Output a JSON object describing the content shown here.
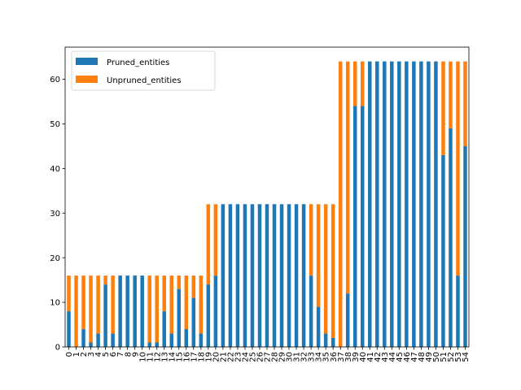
{
  "chart_data": {
    "type": "bar",
    "stacked": true,
    "title": "",
    "xlabel": "",
    "ylabel": "",
    "ylim": [
      0,
      67.2
    ],
    "yticks": [
      0,
      10,
      20,
      30,
      40,
      50,
      60
    ],
    "grid": false,
    "legend_position": "upper left",
    "categories": [
      "0",
      "1",
      "2",
      "3",
      "4",
      "5",
      "6",
      "7",
      "8",
      "9",
      "10",
      "11",
      "12",
      "13",
      "14",
      "15",
      "16",
      "17",
      "18",
      "19",
      "20",
      "21",
      "22",
      "23",
      "24",
      "25",
      "26",
      "27",
      "28",
      "29",
      "30",
      "31",
      "32",
      "33",
      "34",
      "35",
      "36",
      "37",
      "38",
      "39",
      "40",
      "41",
      "42",
      "43",
      "44",
      "45",
      "46",
      "47",
      "48",
      "49",
      "50",
      "51",
      "52",
      "53",
      "54"
    ],
    "series": [
      {
        "name": "Pruned_entities",
        "color": "#1f77b4",
        "values": [
          8,
          0,
          4,
          1,
          3,
          14,
          3,
          16,
          16,
          16,
          16,
          1,
          1,
          8,
          3,
          13,
          4,
          11,
          3,
          14,
          16,
          32,
          32,
          32,
          32,
          32,
          32,
          32,
          32,
          32,
          32,
          32,
          32,
          16,
          9,
          3,
          2,
          0,
          12,
          54,
          54,
          64,
          64,
          64,
          64,
          64,
          64,
          64,
          64,
          64,
          64,
          43,
          49,
          16,
          45
        ]
      },
      {
        "name": "Unpruned_entities",
        "color": "#ff7f0e",
        "values": [
          8,
          16,
          12,
          15,
          13,
          2,
          13,
          0,
          0,
          0,
          0,
          15,
          15,
          8,
          13,
          3,
          12,
          5,
          13,
          18,
          16,
          0,
          0,
          0,
          0,
          0,
          0,
          0,
          0,
          0,
          0,
          0,
          0,
          16,
          23,
          29,
          30,
          64,
          52,
          10,
          10,
          0,
          0,
          0,
          0,
          0,
          0,
          0,
          0,
          0,
          0,
          21,
          15,
          48,
          19
        ]
      }
    ]
  }
}
